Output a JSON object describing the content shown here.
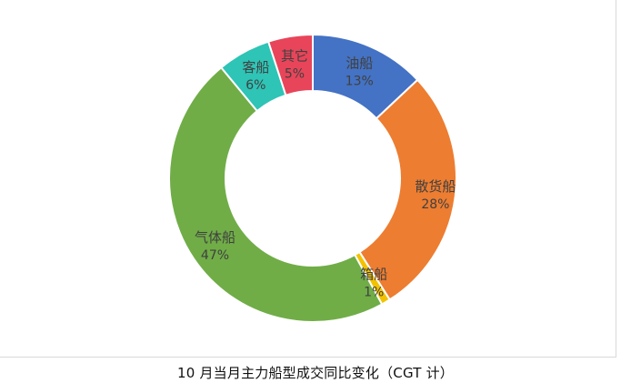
{
  "caption": "10 月当月主力船型成交同比变化（CGT 计）",
  "chart_data": {
    "type": "pie",
    "donut": true,
    "categories": [
      "油船",
      "散货船",
      "箱船",
      "气体船",
      "客船",
      "其它"
    ],
    "values": [
      13,
      28,
      1,
      47,
      6,
      5
    ],
    "value_labels": [
      "13%",
      "28%",
      "1%",
      "47%",
      "6%",
      "5%"
    ],
    "colors": [
      "#4472C4",
      "#ED7D31",
      "#F2C200",
      "#70AD47",
      "#2EC4B6",
      "#E8455A"
    ],
    "legend": "none",
    "title": ""
  }
}
